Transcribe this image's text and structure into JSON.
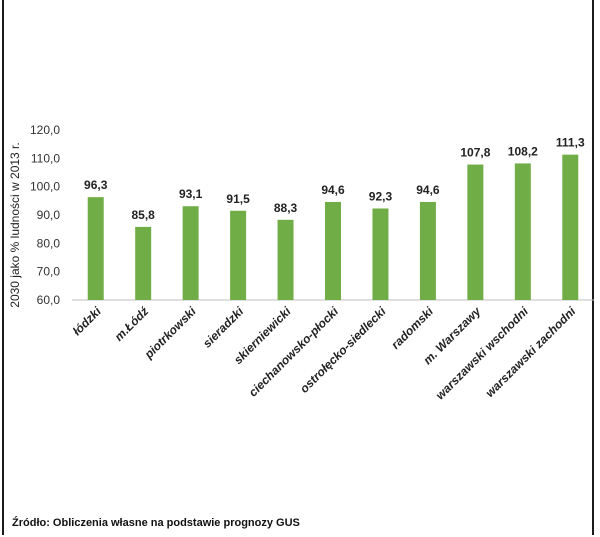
{
  "chart_data": {
    "type": "bar",
    "title": "",
    "xlabel": "",
    "ylabel": "2030 jako % ludności w 2013 r.",
    "ylim": [
      60,
      120
    ],
    "yticks": [
      "60,0",
      "70,0",
      "80,0",
      "90,0",
      "100,0",
      "110,0",
      "120,0"
    ],
    "grid": false,
    "bar_color": "#70ad47",
    "categories": [
      "łódzki",
      "m.Łódź",
      "piotrkowski",
      "sieradzki",
      "skierniewicki",
      "ciechanowsko-płocki",
      "ostrołęcko-siedlecki",
      "radomski",
      "m. Warszawy",
      "warszawski wschodni",
      "warszawski zachodni"
    ],
    "values": [
      96.3,
      85.8,
      93.1,
      91.5,
      88.3,
      94.6,
      92.3,
      94.6,
      107.8,
      108.2,
      111.3
    ],
    "value_labels": [
      "96,3",
      "85,8",
      "93,1",
      "91,5",
      "88,3",
      "94,6",
      "92,3",
      "94,6",
      "107,8",
      "108,2",
      "111,3"
    ]
  },
  "footer": {
    "source": "Źródło: Obliczenia własne na podstawie prognozy GUS"
  }
}
